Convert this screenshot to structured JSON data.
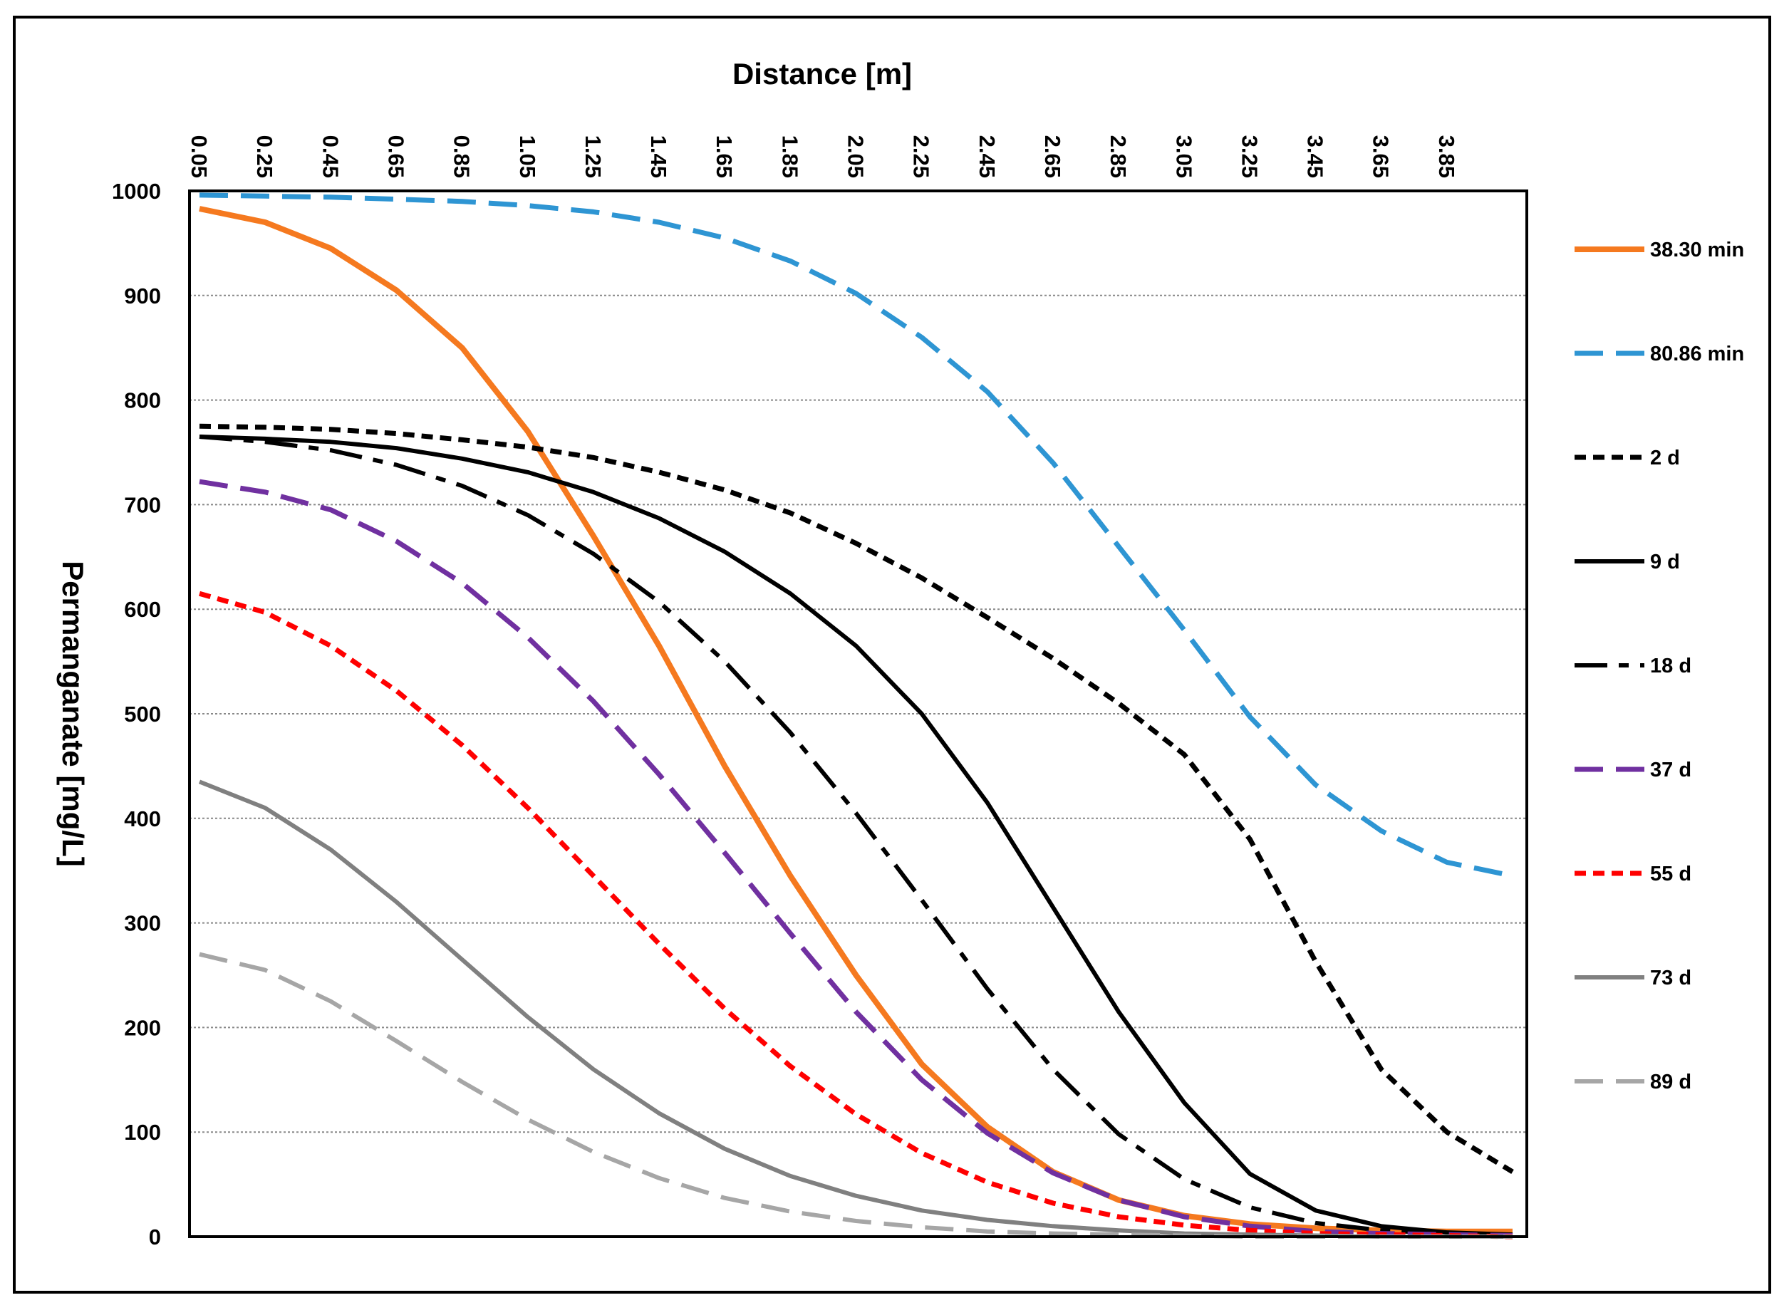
{
  "chart_data": {
    "type": "line",
    "xlabel": "Distance [m]",
    "ylabel": "Permanganate [mg/L]",
    "xlim": [
      0.05,
      4.05
    ],
    "ylim": [
      0,
      1000
    ],
    "x_tick_labels": [
      "0.05",
      "0.25",
      "0.45",
      "0.65",
      "0.85",
      "1.05",
      "1.25",
      "1.45",
      "1.65",
      "1.85",
      "2.05",
      "2.25",
      "2.45",
      "2.65",
      "2.85",
      "3.05",
      "3.25",
      "3.45",
      "3.65",
      "3.85"
    ],
    "y_tick_labels": [
      "0",
      "100",
      "200",
      "300",
      "400",
      "500",
      "600",
      "700",
      "800",
      "900",
      "1000"
    ],
    "grid": "horizontal dotted",
    "legend_position": "right",
    "x": [
      0.05,
      0.25,
      0.45,
      0.65,
      0.85,
      1.05,
      1.25,
      1.45,
      1.65,
      1.85,
      2.05,
      2.25,
      2.45,
      2.65,
      2.85,
      3.05,
      3.25,
      3.45,
      3.65,
      3.85,
      4.05
    ],
    "series": [
      {
        "name": "38.30 min",
        "color": "#F5791F",
        "dash": "solid",
        "width": 8,
        "values": [
          983,
          970,
          945,
          905,
          850,
          770,
          670,
          565,
          450,
          345,
          250,
          165,
          105,
          62,
          35,
          20,
          12,
          8,
          6,
          5,
          5
        ]
      },
      {
        "name": "80.86 min",
        "color": "#2E95D3",
        "dash": "long",
        "width": 7,
        "values": [
          996,
          995,
          994,
          992,
          990,
          986,
          980,
          970,
          955,
          933,
          902,
          860,
          808,
          740,
          660,
          580,
          497,
          432,
          388,
          358,
          345
        ]
      },
      {
        "name": "2 d",
        "color": "#000000",
        "dash": "short",
        "width": 7,
        "values": [
          775,
          774,
          772,
          768,
          762,
          755,
          745,
          731,
          714,
          692,
          663,
          630,
          592,
          553,
          510,
          461,
          380,
          263,
          160,
          100,
          62
        ]
      },
      {
        "name": "9 d",
        "color": "#000000",
        "dash": "solid",
        "width": 6,
        "values": [
          765,
          763,
          760,
          754,
          744,
          731,
          712,
          687,
          655,
          615,
          565,
          500,
          415,
          315,
          215,
          128,
          60,
          25,
          10,
          4,
          2
        ]
      },
      {
        "name": "18 d",
        "color": "#000000",
        "dash": "longshort",
        "width": 6,
        "values": [
          765,
          760,
          752,
          738,
          718,
          690,
          653,
          607,
          550,
          482,
          405,
          322,
          237,
          160,
          98,
          55,
          28,
          13,
          6,
          3,
          1
        ]
      },
      {
        "name": "37 d",
        "color": "#7030A0",
        "dash": "long",
        "width": 7,
        "values": [
          722,
          712,
          695,
          665,
          625,
          573,
          512,
          442,
          367,
          290,
          215,
          150,
          99,
          61,
          35,
          19,
          10,
          5,
          3,
          2,
          1
        ]
      },
      {
        "name": "55 d",
        "color": "#FF0000",
        "dash": "short",
        "width": 7,
        "values": [
          615,
          597,
          565,
          522,
          470,
          410,
          345,
          280,
          218,
          163,
          117,
          80,
          52,
          32,
          19,
          11,
          6,
          3,
          2,
          1,
          0
        ]
      },
      {
        "name": "73 d",
        "color": "#808080",
        "dash": "solid",
        "width": 6,
        "values": [
          435,
          410,
          370,
          320,
          265,
          210,
          160,
          118,
          84,
          58,
          39,
          25,
          16,
          10,
          6,
          3,
          2,
          1,
          0,
          0,
          0
        ]
      },
      {
        "name": "89 d",
        "color": "#A6A6A6",
        "dash": "long",
        "width": 6,
        "values": [
          270,
          255,
          225,
          187,
          148,
          112,
          81,
          56,
          37,
          24,
          15,
          9,
          5,
          3,
          2,
          1,
          0,
          0,
          0,
          0,
          0
        ]
      }
    ]
  }
}
